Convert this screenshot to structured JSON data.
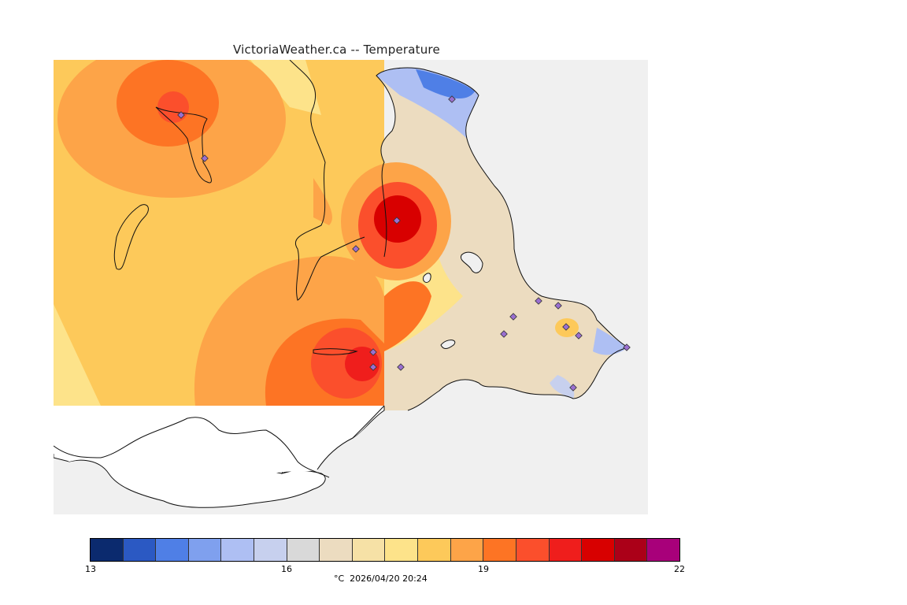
{
  "title": "VictoriaWeather.ca -- Temperature",
  "colors": {
    "sea": "#f0f0f0",
    "coast": "#111111",
    "station": "#9a6fd0",
    "scale": [
      "#0b2a6e",
      "#2b59c3",
      "#4f7fe6",
      "#7fa0ee",
      "#aebff3",
      "#c7d0ee",
      "#d9d9d9",
      "#ecdcc0",
      "#f6e1a6",
      "#fde38a",
      "#fdc95a",
      "#fda448",
      "#fd7424",
      "#fb4f2c",
      "#ef1e1c",
      "#d80000",
      "#ab0018",
      "#a8007a"
    ]
  },
  "colorbar": {
    "ticks": [
      {
        "label": "13",
        "value": 13
      },
      {
        "label": "16",
        "value": 16
      },
      {
        "label": "19",
        "value": 19
      },
      {
        "label": "22",
        "value": 22
      }
    ],
    "min": 13,
    "max": 22
  },
  "caption": "°C  2026/04/20 20:24",
  "stations": [
    "station-1",
    "station-2",
    "station-3",
    "station-4",
    "station-5",
    "station-6",
    "station-7",
    "station-8",
    "station-9",
    "station-10",
    "station-11",
    "station-12",
    "station-13",
    "station-14",
    "station-15",
    "station-16"
  ]
}
